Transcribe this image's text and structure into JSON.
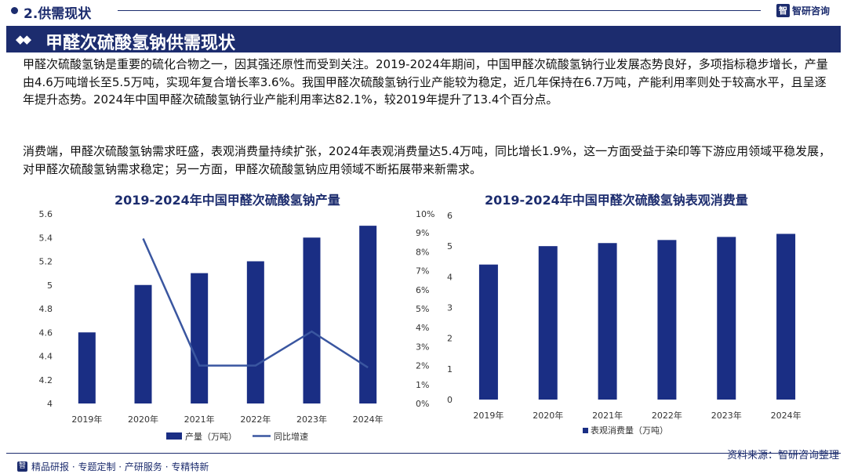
{
  "header": {
    "section": "2.供需现状",
    "brand": "智研咨询",
    "brand_mark": "智"
  },
  "title": "甲醛次硫酸氢钠供需现状",
  "paragraphs": [
    "甲醛次硫酸氢钠是重要的硫化合物之一，因其强还原性而受到关注。2019-2024年期间，中国甲醛次硫酸氢钠行业发展态势良好，多项指标稳步增长，产量由4.6万吨增长至5.5万吨，实现年复合增长率3.6%。我国甲醛次硫酸氢钠行业产能较为稳定，近几年保持在6.7万吨，产能利用率则处于较高水平，且呈逐年提升态势。2024年中国甲醛次硫酸氢钠行业产能利用率达82.1%，较2019年提升了13.4个百分点。",
    "消费端，甲醛次硫酸氢钠需求旺盛，表观消费量持续扩张，2024年表观消费量达5.4万吨，同比增长1.9%，这一方面受益于染印等下游应用领域平稳发展，对甲醛次硫酸氢钠需求稳定；另一方面，甲醛次硫酸氢钠应用领域不断拓展带来新需求。"
  ],
  "colors": {
    "brand": "#1c2c6e",
    "bar": "#1a2e84",
    "line": "#3a56a0"
  },
  "chart_data": [
    {
      "type": "bar",
      "title": "2019-2024年中国甲醛次硫酸氢钠产量",
      "categories": [
        "2019年",
        "2020年",
        "2021年",
        "2022年",
        "2023年",
        "2024年"
      ],
      "series": [
        {
          "name": "产量（万吨）",
          "type": "bar",
          "axis": "left",
          "values": [
            4.6,
            5.0,
            5.1,
            5.2,
            5.4,
            5.5
          ]
        },
        {
          "name": "同比增速",
          "type": "line",
          "axis": "right",
          "values": [
            null,
            8.7,
            2.0,
            2.0,
            3.8,
            1.9
          ]
        }
      ],
      "ylim": [
        4,
        5.6
      ],
      "yticks": [
        "4",
        "4.2",
        "4.4",
        "4.6",
        "4.8",
        "5",
        "5.2",
        "5.4",
        "5.6"
      ],
      "y2lim": [
        0,
        10
      ],
      "y2ticks": [
        "0%",
        "1%",
        "2%",
        "3%",
        "4%",
        "5%",
        "6%",
        "7%",
        "8%",
        "9%",
        "10%"
      ],
      "legend": "bottom"
    },
    {
      "type": "bar",
      "title": "2019-2024年中国甲醛次硫酸氢钠表观消费量",
      "categories": [
        "2019年",
        "2020年",
        "2021年",
        "2022年",
        "2023年",
        "2024年"
      ],
      "series": [
        {
          "name": "表观消费量（万吨）",
          "values": [
            4.4,
            5.0,
            5.1,
            5.2,
            5.3,
            5.4
          ]
        }
      ],
      "ylim": [
        0,
        6
      ],
      "yticks": [
        "0",
        "1",
        "2",
        "3",
        "4",
        "5",
        "6"
      ],
      "legend": "bottom"
    }
  ],
  "footer": {
    "tags": "精品研报 · 专题定制 · 产研服务 · 专精特新",
    "source": "资料来源：智研咨询整理"
  }
}
